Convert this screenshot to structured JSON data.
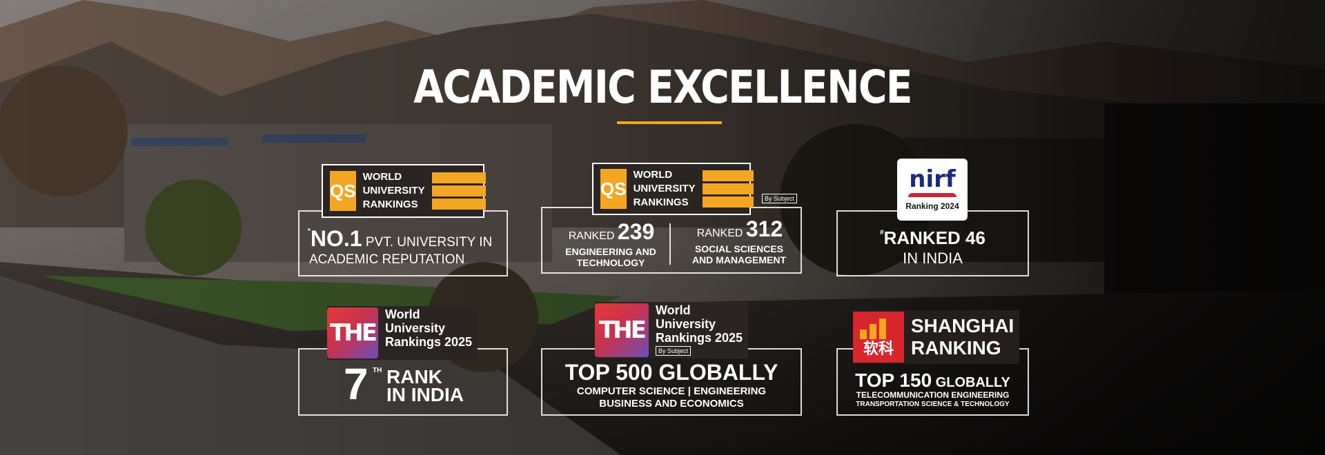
{
  "title": "ACADEMIC EXCELLENCE",
  "colors": {
    "accent": "#f4a623",
    "the_gradient_start": "#e53a3a",
    "the_gradient_end": "#6b4fb8",
    "shanghai_red": "#d8262e",
    "nirf_blue": "#1b2a7a"
  },
  "qs_logo": {
    "line1": "WORLD",
    "line2": "UNIVERSITY",
    "line3": "RANKINGS",
    "badge": "QS"
  },
  "card1": {
    "sup": "*",
    "big": "NO.1",
    "line1_rest": " PVT. UNIVERSITY IN",
    "line2": "ACADEMIC REPUTATION"
  },
  "card2": {
    "by_subject": "By Subject",
    "left": {
      "ranked": "RANKED",
      "number": "239",
      "line1": "ENGINEERING AND",
      "line2": "TECHNOLOGY"
    },
    "right": {
      "ranked": "RANKED",
      "number": "312",
      "line1": "SOCIAL SCIENCES",
      "line2": "AND MANAGEMENT"
    }
  },
  "nirf": {
    "logo_text": "nirf",
    "year": "Ranking 2024"
  },
  "card3": {
    "sup": "#",
    "line1": "RANKED 46",
    "line2": "IN INDIA"
  },
  "the_logo": {
    "badge": "THE",
    "line1": "World",
    "line2": "University",
    "line3": "Rankings 2025"
  },
  "card4": {
    "number": "7",
    "sup": "TH",
    "line1": "RANK",
    "line2": "IN INDIA"
  },
  "card5": {
    "by_subject": "By Subject",
    "line1": "TOP 500 GLOBALLY",
    "line2": "COMPUTER SCIENCE | ENGINEERING",
    "line3": "BUSINESS AND ECONOMICS"
  },
  "shanghai": {
    "chars": "软科",
    "line1": "SHANGHAI",
    "line2": "RANKING"
  },
  "card6": {
    "big": "TOP 150",
    "rest": " GLOBALLY",
    "line2": "TELECOMMUNICATION ENGINEERING",
    "line3": "TRANSPORTATION SCIENCE & TECHNOLOGY"
  }
}
